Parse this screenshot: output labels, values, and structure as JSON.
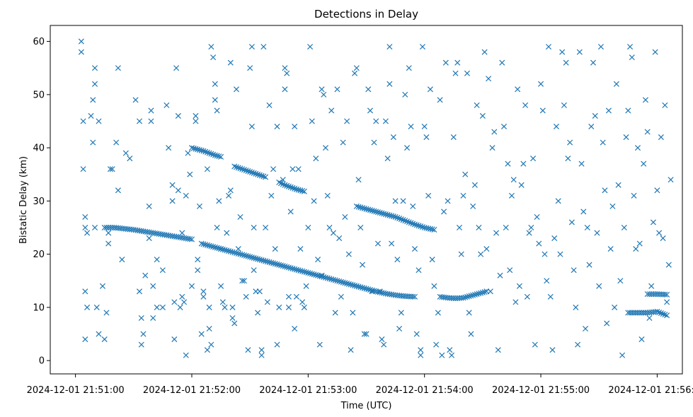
{
  "chart_data": {
    "type": "scatter",
    "title": "Detections in Delay",
    "xlabel": "Time (UTC)",
    "ylabel": "Bistatic Delay (km)",
    "xlim_seconds": [
      0,
      310
    ],
    "ylim": [
      -2.5,
      63
    ],
    "x_origin": "2024-12-01 21:51:00",
    "xticks": [
      {
        "t": 0,
        "label": "2024-12-01 21:51:00"
      },
      {
        "t": 60,
        "label": "2024-12-01 21:52:00"
      },
      {
        "t": 120,
        "label": "2024-12-01 21:53:00"
      },
      {
        "t": 180,
        "label": "2024-12-01 21:54:00"
      },
      {
        "t": 240,
        "label": "2024-12-01 21:55:00"
      },
      {
        "t": 300,
        "label": "2024-12-01 21:56:00"
      }
    ],
    "yticks": [
      0,
      10,
      20,
      30,
      40,
      50,
      60
    ],
    "marker": "x",
    "color": "#1f77b4",
    "tracks": [
      {
        "name": "track-a",
        "points": [
          [
            15,
            25
          ],
          [
            20,
            25
          ],
          [
            25,
            24.8
          ],
          [
            30,
            24.6
          ],
          [
            35,
            24.3
          ],
          [
            40,
            24
          ],
          [
            45,
            23.7
          ],
          [
            50,
            23.4
          ],
          [
            55,
            23.1
          ],
          [
            60,
            22.8
          ]
        ]
      },
      {
        "name": "track-b",
        "points": [
          [
            65,
            22
          ],
          [
            70,
            21.5
          ],
          [
            75,
            21
          ],
          [
            80,
            20.5
          ],
          [
            85,
            20
          ],
          [
            90,
            19.5
          ],
          [
            95,
            19
          ],
          [
            100,
            18.5
          ],
          [
            105,
            18
          ],
          [
            110,
            17.5
          ],
          [
            115,
            17
          ],
          [
            120,
            16.5
          ],
          [
            125,
            16
          ],
          [
            130,
            15.5
          ],
          [
            135,
            15
          ],
          [
            140,
            14.5
          ],
          [
            145,
            14
          ],
          [
            150,
            13.5
          ],
          [
            155,
            13
          ],
          [
            160,
            12.6
          ],
          [
            165,
            12.3
          ],
          [
            170,
            12.1
          ],
          [
            175,
            12
          ]
        ]
      },
      {
        "name": "track-c",
        "points": [
          [
            188,
            12
          ],
          [
            192,
            11.8
          ],
          [
            196,
            11.7
          ],
          [
            200,
            11.8
          ],
          [
            204,
            12.2
          ],
          [
            208,
            12.6
          ],
          [
            212,
            13
          ]
        ]
      },
      {
        "name": "track-d",
        "points": [
          [
            60,
            40
          ],
          [
            63,
            39.7
          ],
          [
            66,
            39.4
          ],
          [
            69,
            39
          ],
          [
            72,
            38.6
          ],
          [
            75,
            38.3
          ]
        ]
      },
      {
        "name": "track-e",
        "points": [
          [
            82,
            36.5
          ],
          [
            86,
            36
          ],
          [
            90,
            35.5
          ],
          [
            94,
            35
          ],
          [
            98,
            34.5
          ]
        ]
      },
      {
        "name": "track-f",
        "points": [
          [
            105,
            33.5
          ],
          [
            108,
            33
          ],
          [
            111,
            32.6
          ],
          [
            114,
            32.2
          ],
          [
            118,
            31.8
          ]
        ]
      },
      {
        "name": "track-g",
        "points": [
          [
            145,
            29
          ],
          [
            150,
            28.5
          ],
          [
            155,
            28
          ],
          [
            160,
            27.5
          ],
          [
            165,
            27
          ],
          [
            170,
            26.3
          ],
          [
            175,
            25.6
          ],
          [
            180,
            25
          ],
          [
            185,
            24.6
          ]
        ]
      },
      {
        "name": "track-h",
        "points": [
          [
            285,
            9
          ],
          [
            290,
            9
          ],
          [
            295,
            9
          ],
          [
            300,
            9.2
          ],
          [
            305,
            8.5
          ]
        ]
      },
      {
        "name": "track-i",
        "points": [
          [
            295,
            12.5
          ],
          [
            300,
            12.5
          ],
          [
            305,
            12.4
          ]
        ]
      }
    ],
    "scatter_points": [
      [
        3,
        60
      ],
      [
        3,
        58
      ],
      [
        4,
        45
      ],
      [
        4,
        36
      ],
      [
        5,
        27
      ],
      [
        5,
        25
      ],
      [
        6,
        24
      ],
      [
        5,
        13
      ],
      [
        6,
        10
      ],
      [
        5,
        4
      ],
      [
        10,
        55
      ],
      [
        10,
        52
      ],
      [
        9,
        49
      ],
      [
        8,
        46
      ],
      [
        9,
        41
      ],
      [
        12,
        45
      ],
      [
        10,
        25
      ],
      [
        11,
        10
      ],
      [
        12,
        5
      ],
      [
        15,
        4
      ],
      [
        14,
        14
      ],
      [
        16,
        9
      ],
      [
        17,
        22
      ],
      [
        17,
        24
      ],
      [
        18,
        36
      ],
      [
        19,
        36
      ],
      [
        21,
        41
      ],
      [
        22,
        32
      ],
      [
        22,
        55
      ],
      [
        24,
        19
      ],
      [
        26,
        39
      ],
      [
        28,
        38
      ],
      [
        31,
        49
      ],
      [
        33,
        45
      ],
      [
        33,
        13
      ],
      [
        34,
        8
      ],
      [
        35,
        5
      ],
      [
        34,
        3
      ],
      [
        36,
        16
      ],
      [
        38,
        23
      ],
      [
        38,
        29
      ],
      [
        39,
        47
      ],
      [
        39,
        45
      ],
      [
        40,
        14
      ],
      [
        40,
        8
      ],
      [
        42,
        19
      ],
      [
        42,
        10
      ],
      [
        45,
        17
      ],
      [
        45,
        10
      ],
      [
        47,
        48
      ],
      [
        48,
        40
      ],
      [
        50,
        30
      ],
      [
        50,
        33
      ],
      [
        51,
        11
      ],
      [
        51,
        4
      ],
      [
        52,
        55
      ],
      [
        53,
        32
      ],
      [
        53,
        46
      ],
      [
        54,
        10
      ],
      [
        55,
        24
      ],
      [
        55,
        12
      ],
      [
        56,
        11
      ],
      [
        57,
        31
      ],
      [
        57,
        1
      ],
      [
        58,
        39
      ],
      [
        59,
        35
      ],
      [
        60,
        14
      ],
      [
        62,
        45
      ],
      [
        62,
        46
      ],
      [
        63,
        19
      ],
      [
        63,
        17
      ],
      [
        64,
        29
      ],
      [
        65,
        5
      ],
      [
        66,
        12
      ],
      [
        66,
        13
      ],
      [
        68,
        36
      ],
      [
        68,
        2
      ],
      [
        69,
        6
      ],
      [
        69,
        10
      ],
      [
        70,
        3
      ],
      [
        70,
        59
      ],
      [
        71,
        57
      ],
      [
        72,
        52
      ],
      [
        72,
        49
      ],
      [
        73,
        47
      ],
      [
        73,
        25
      ],
      [
        74,
        30
      ],
      [
        75,
        21
      ],
      [
        75,
        14
      ],
      [
        76,
        11
      ],
      [
        77,
        10
      ],
      [
        78,
        24
      ],
      [
        79,
        31
      ],
      [
        80,
        32
      ],
      [
        80,
        56
      ],
      [
        81,
        10
      ],
      [
        81,
        8
      ],
      [
        82,
        7
      ],
      [
        83,
        51
      ],
      [
        84,
        21
      ],
      [
        85,
        27
      ],
      [
        86,
        15
      ],
      [
        87,
        15
      ],
      [
        88,
        12
      ],
      [
        89,
        2
      ],
      [
        90,
        55
      ],
      [
        91,
        59
      ],
      [
        91,
        44
      ],
      [
        92,
        17
      ],
      [
        92,
        25
      ],
      [
        93,
        13
      ],
      [
        94,
        9
      ],
      [
        95,
        13
      ],
      [
        96,
        2
      ],
      [
        96,
        1
      ],
      [
        97,
        59
      ],
      [
        98,
        25
      ],
      [
        99,
        11
      ],
      [
        100,
        48
      ],
      [
        101,
        31
      ],
      [
        102,
        36
      ],
      [
        103,
        21
      ],
      [
        104,
        44
      ],
      [
        104,
        3
      ],
      [
        105,
        10
      ],
      [
        107,
        34
      ],
      [
        108,
        55
      ],
      [
        108,
        51
      ],
      [
        109,
        54
      ],
      [
        110,
        10
      ],
      [
        110,
        12
      ],
      [
        111,
        28
      ],
      [
        112,
        36
      ],
      [
        113,
        44
      ],
      [
        113,
        6
      ],
      [
        114,
        12
      ],
      [
        115,
        36
      ],
      [
        116,
        21
      ],
      [
        117,
        11
      ],
      [
        118,
        10
      ],
      [
        119,
        14
      ],
      [
        120,
        25
      ],
      [
        121,
        59
      ],
      [
        122,
        45
      ],
      [
        123,
        30
      ],
      [
        124,
        38
      ],
      [
        125,
        19
      ],
      [
        126,
        3
      ],
      [
        127,
        16
      ],
      [
        127,
        51
      ],
      [
        128,
        50
      ],
      [
        129,
        40
      ],
      [
        130,
        31
      ],
      [
        131,
        25
      ],
      [
        132,
        47
      ],
      [
        133,
        24
      ],
      [
        134,
        9
      ],
      [
        135,
        51
      ],
      [
        136,
        23
      ],
      [
        137,
        12
      ],
      [
        138,
        41
      ],
      [
        139,
        27
      ],
      [
        140,
        45
      ],
      [
        141,
        20
      ],
      [
        142,
        2
      ],
      [
        143,
        9
      ],
      [
        144,
        54
      ],
      [
        145,
        55
      ],
      [
        146,
        34
      ],
      [
        147,
        25
      ],
      [
        148,
        18
      ],
      [
        149,
        5
      ],
      [
        150,
        5
      ],
      [
        151,
        51
      ],
      [
        152,
        47
      ],
      [
        153,
        13
      ],
      [
        154,
        41
      ],
      [
        155,
        45
      ],
      [
        156,
        22
      ],
      [
        157,
        13
      ],
      [
        158,
        4
      ],
      [
        159,
        3
      ],
      [
        160,
        45
      ],
      [
        161,
        38
      ],
      [
        162,
        59
      ],
      [
        162,
        52
      ],
      [
        163,
        22
      ],
      [
        164,
        42
      ],
      [
        165,
        30
      ],
      [
        166,
        19
      ],
      [
        167,
        6
      ],
      [
        168,
        9
      ],
      [
        169,
        30
      ],
      [
        170,
        50
      ],
      [
        171,
        40
      ],
      [
        172,
        55
      ],
      [
        173,
        44
      ],
      [
        174,
        29
      ],
      [
        175,
        21
      ],
      [
        176,
        5
      ],
      [
        177,
        17
      ],
      [
        178,
        2
      ],
      [
        178,
        1
      ],
      [
        179,
        59
      ],
      [
        180,
        44
      ],
      [
        181,
        42
      ],
      [
        182,
        31
      ],
      [
        183,
        51
      ],
      [
        184,
        19
      ],
      [
        185,
        14
      ],
      [
        186,
        3
      ],
      [
        187,
        9
      ],
      [
        188,
        49
      ],
      [
        189,
        1
      ],
      [
        190,
        28
      ],
      [
        191,
        56
      ],
      [
        192,
        30
      ],
      [
        193,
        2
      ],
      [
        194,
        1
      ],
      [
        195,
        42
      ],
      [
        196,
        54
      ],
      [
        197,
        56
      ],
      [
        198,
        25
      ],
      [
        199,
        20
      ],
      [
        200,
        31
      ],
      [
        201,
        35
      ],
      [
        202,
        54
      ],
      [
        203,
        9
      ],
      [
        204,
        5
      ],
      [
        205,
        29
      ],
      [
        206,
        33
      ],
      [
        207,
        48
      ],
      [
        208,
        25
      ],
      [
        209,
        20
      ],
      [
        210,
        46
      ],
      [
        211,
        58
      ],
      [
        212,
        21
      ],
      [
        213,
        53
      ],
      [
        214,
        13
      ],
      [
        215,
        40
      ],
      [
        216,
        43
      ],
      [
        217,
        24
      ],
      [
        218,
        2
      ],
      [
        219,
        16
      ],
      [
        220,
        56
      ],
      [
        221,
        44
      ],
      [
        222,
        25
      ],
      [
        223,
        37
      ],
      [
        224,
        17
      ],
      [
        225,
        31
      ],
      [
        226,
        34
      ],
      [
        227,
        11
      ],
      [
        228,
        51
      ],
      [
        229,
        14
      ],
      [
        230,
        33
      ],
      [
        231,
        37
      ],
      [
        232,
        48
      ],
      [
        233,
        12
      ],
      [
        234,
        24
      ],
      [
        235,
        25
      ],
      [
        236,
        38
      ],
      [
        237,
        3
      ],
      [
        238,
        27
      ],
      [
        239,
        22
      ],
      [
        240,
        52
      ],
      [
        241,
        47
      ],
      [
        242,
        20
      ],
      [
        243,
        15
      ],
      [
        244,
        59
      ],
      [
        245,
        12
      ],
      [
        246,
        2
      ],
      [
        247,
        23
      ],
      [
        248,
        44
      ],
      [
        249,
        30
      ],
      [
        250,
        20
      ],
      [
        251,
        58
      ],
      [
        252,
        48
      ],
      [
        253,
        56
      ],
      [
        254,
        38
      ],
      [
        255,
        41
      ],
      [
        256,
        26
      ],
      [
        257,
        17
      ],
      [
        258,
        10
      ],
      [
        259,
        3
      ],
      [
        260,
        58
      ],
      [
        261,
        37
      ],
      [
        262,
        28
      ],
      [
        263,
        6
      ],
      [
        264,
        25
      ],
      [
        265,
        18
      ],
      [
        266,
        44
      ],
      [
        267,
        56
      ],
      [
        268,
        46
      ],
      [
        269,
        24
      ],
      [
        270,
        14
      ],
      [
        271,
        59
      ],
      [
        272,
        41
      ],
      [
        273,
        32
      ],
      [
        274,
        7
      ],
      [
        275,
        47
      ],
      [
        276,
        21
      ],
      [
        277,
        29
      ],
      [
        278,
        10
      ],
      [
        279,
        52
      ],
      [
        280,
        33
      ],
      [
        281,
        15
      ],
      [
        282,
        1
      ],
      [
        283,
        25
      ],
      [
        284,
        42
      ],
      [
        285,
        47
      ],
      [
        286,
        59
      ],
      [
        287,
        57
      ],
      [
        288,
        31
      ],
      [
        289,
        21
      ],
      [
        290,
        40
      ],
      [
        291,
        22
      ],
      [
        292,
        4
      ],
      [
        293,
        37
      ],
      [
        294,
        49
      ],
      [
        295,
        43
      ],
      [
        296,
        8
      ],
      [
        297,
        14
      ],
      [
        298,
        26
      ],
      [
        299,
        58
      ],
      [
        300,
        32
      ],
      [
        301,
        24
      ],
      [
        302,
        42
      ],
      [
        303,
        23
      ],
      [
        304,
        48
      ],
      [
        305,
        11
      ],
      [
        306,
        18
      ],
      [
        307,
        34
      ]
    ]
  }
}
